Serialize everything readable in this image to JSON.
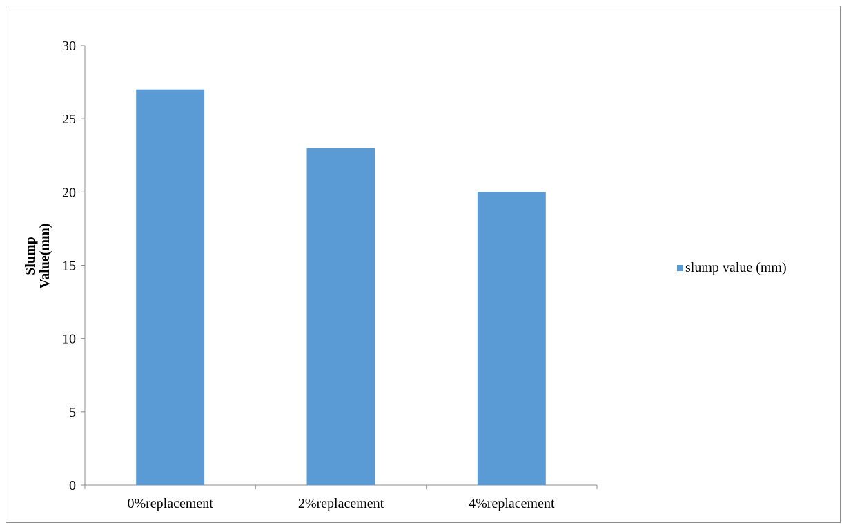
{
  "chart_data": {
    "type": "bar",
    "title": "",
    "xlabel": "",
    "ylabel_lines": [
      "Slump",
      "Value(mm)"
    ],
    "categories": [
      "0%replacement",
      "2%replacement",
      "4%replacement"
    ],
    "series": [
      {
        "name": "slump value (mm)",
        "values": [
          27,
          23,
          20
        ],
        "color": "#5b9bd5"
      }
    ],
    "ylim": [
      0,
      30
    ],
    "yticks": [
      0,
      5,
      10,
      15,
      20,
      25,
      30
    ],
    "grid": false,
    "legend_position": "right"
  }
}
